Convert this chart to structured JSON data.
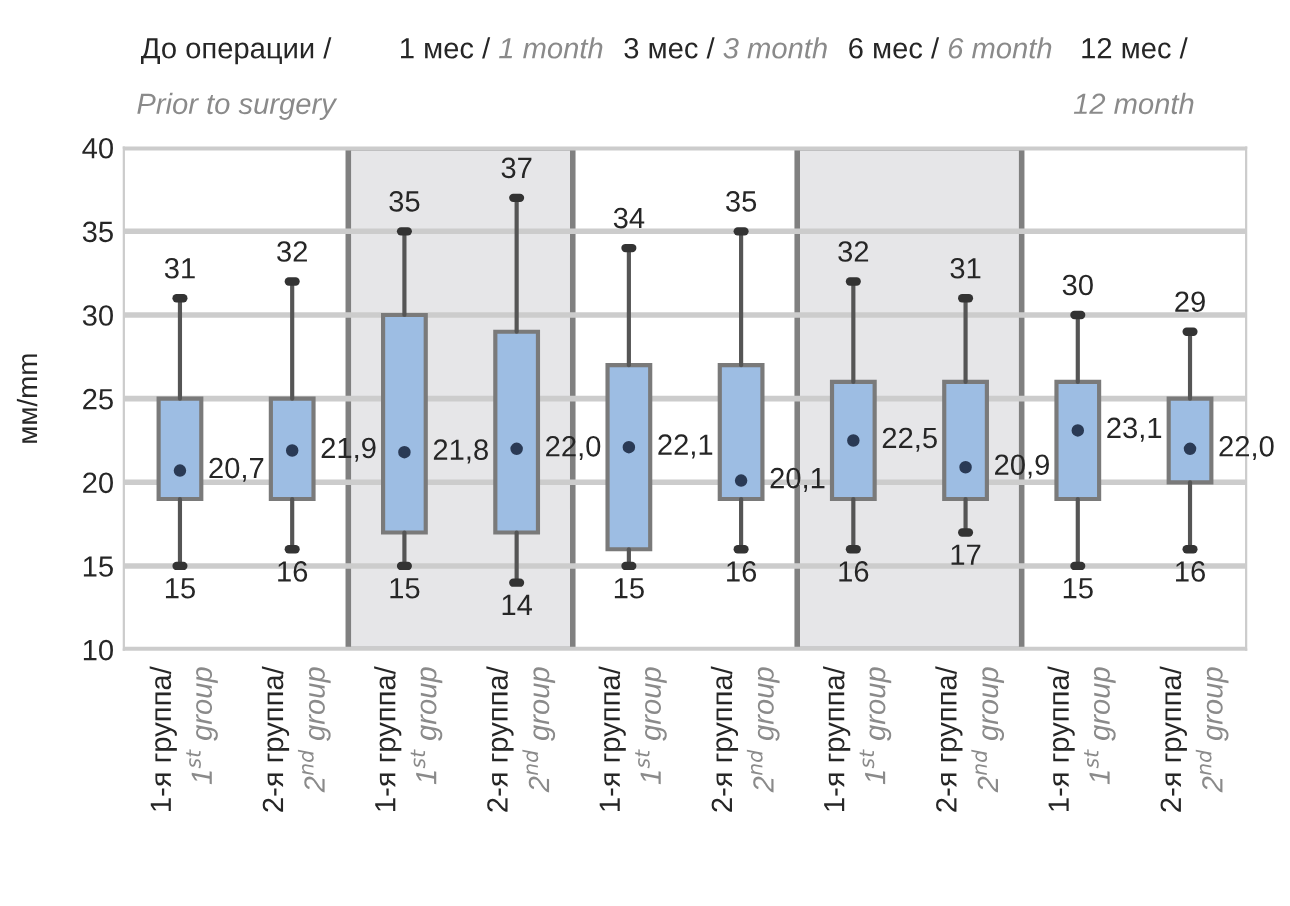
{
  "chart_data": {
    "type": "box",
    "ylabel": "мм/mm",
    "categories": [
      "1-я группа/\n1$^{st}$ group",
      "2-я группа/\n2$^{nd}$ group",
      "1-я группа/\n1$^{st}$ group",
      "2-я группа/\n2$^{nd}$ group",
      "1-я группа/\n1$^{st}$ group",
      "2-я группа/\n2$^{nd}$ group",
      "1-я группа/\n1$^{st}$ group",
      "2-я группа/\n2$^{nd}$ group",
      "1-я группа/\n1$^{st}$ group",
      "2-я группа/\n2$^{nd}$ group"
    ],
    "boxes": [
      {
        "low": 15,
        "q1": 19,
        "q3": 25,
        "high": 31,
        "mean": 20.7
      },
      {
        "low": 16,
        "q1": 19,
        "q3": 25,
        "high": 32,
        "mean": 21.9
      },
      {
        "low": 15,
        "q1": 17,
        "q3": 30,
        "high": 35,
        "mean": 21.8
      },
      {
        "low": 14,
        "q1": 17,
        "q3": 29,
        "high": 37,
        "mean": 22.0
      },
      {
        "low": 15,
        "q1": 16,
        "q3": 27,
        "high": 34,
        "mean": 22.1
      },
      {
        "low": 16,
        "q1": 19,
        "q3": 27,
        "high": 35,
        "mean": 20.1
      },
      {
        "low": 16,
        "q1": 19,
        "q3": 26,
        "high": 32,
        "mean": 22.5
      },
      {
        "low": 17,
        "q1": 19,
        "q3": 26,
        "high": 31,
        "mean": 20.9
      },
      {
        "low": 15,
        "q1": 19,
        "q3": 26,
        "high": 30,
        "mean": 23.1
      },
      {
        "low": 16,
        "q1": 20,
        "q3": 25,
        "high": 29,
        "mean": 22.0
      }
    ],
    "color": "#9dbde3",
    "ylim": [
      10,
      40
    ],
    "yticks": [
      10,
      15,
      20,
      25,
      30,
      35,
      40
    ],
    "grid": "y",
    "annotations": [
      "До операции /\nPrior to surgery",
      "1 мес / 1 month",
      "3 мес / 3 month",
      "6 мес / 6 month",
      "12 мес /\n12 month",
      {
        "text": "31",
        "y": 31
      },
      {
        "text": "15",
        "y": 15
      },
      "20,7",
      {
        "text": "32",
        "y": 32
      },
      {
        "text": "16",
        "y": 16
      },
      "21,9",
      {
        "text": "35",
        "y": 35
      },
      {
        "text": "15",
        "y": 15
      },
      "21,8",
      {
        "text": "37",
        "y": 37
      },
      {
        "text": "14",
        "y": 14
      },
      "22,0",
      {
        "text": "34",
        "y": 34
      },
      {
        "text": "15",
        "y": 15
      },
      "22,1",
      {
        "text": "35",
        "y": 35
      },
      {
        "text": "16",
        "y": 16
      },
      "20,1",
      {
        "text": "32",
        "y": 32
      },
      {
        "text": "16",
        "y": 16
      },
      "22,5",
      {
        "text": "31",
        "y": 31
      },
      {
        "text": "17",
        "y": 17
      },
      "20,9",
      {
        "text": "30",
        "y": 30
      },
      {
        "text": "15",
        "y": 15
      },
      "23,1",
      {
        "text": "29",
        "y": 29
      },
      {
        "text": "16",
        "y": 16
      },
      "22,0"
    ]
  }
}
